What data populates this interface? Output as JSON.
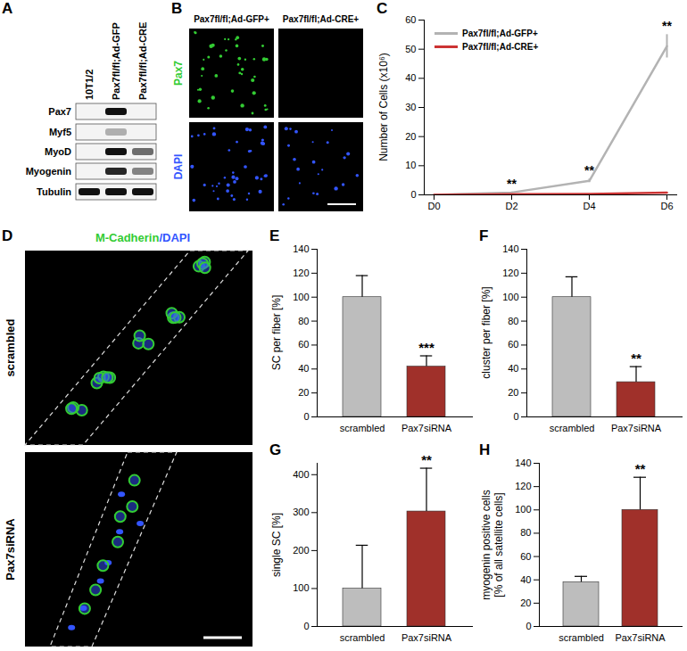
{
  "panels": {
    "A": {
      "panel": "A",
      "columns": [
        "10T1/2",
        "Pax7fl/fl;Ad-GFP",
        "Pax7fl/fl;Ad-CRE"
      ],
      "rows": [
        {
          "label": "Pax7",
          "bands": [
            0,
            1,
            0
          ]
        },
        {
          "label": "Myf5",
          "bands": [
            0,
            0.3,
            0
          ]
        },
        {
          "label": "MyoD",
          "bands": [
            0,
            1,
            0.6
          ]
        },
        {
          "label": "Myogenin",
          "bands": [
            0,
            0.9,
            0.5
          ]
        },
        {
          "label": "Tubulin",
          "bands": [
            1,
            1,
            1
          ]
        }
      ]
    },
    "B": {
      "panel": "B",
      "columns": [
        "Pax7fl/fl;Ad-GFP+",
        "Pax7fl/fl;Ad-CRE+"
      ],
      "rows": [
        {
          "label": "Pax7",
          "color": "#33cc33",
          "signal": [
            true,
            false
          ]
        },
        {
          "label": "DAPI",
          "color": "#3355ff",
          "signal": [
            true,
            true
          ]
        }
      ]
    },
    "D": {
      "panel": "D",
      "stains": [
        {
          "text": "M-Cadherin",
          "color": "#33cc33"
        },
        {
          "text": "/DAPI",
          "color": "#3355ff"
        }
      ],
      "rows": [
        "scrambled",
        "Pax7siRNA"
      ]
    }
  },
  "chart_data": [
    {
      "panel": "C",
      "type": "line",
      "categories": [
        "D0",
        "D2",
        "D4",
        "D6"
      ],
      "y_label": "Number of Cells (x10⁶)",
      "ylim": [
        0,
        60
      ],
      "yticks": [
        0,
        10,
        20,
        30,
        40,
        50,
        60
      ],
      "legend": "top-left",
      "series": [
        {
          "name": "Pax7fl/fl;Ad-GFP+",
          "color": "#b3b3b3",
          "values": [
            0,
            0.8,
            4.8,
            51
          ],
          "errors": [
            0,
            0.2,
            0.6,
            4
          ]
        },
        {
          "name": "Pax7fl/fl;Ad-CRE+",
          "color": "#cc3333",
          "values": [
            0,
            0.2,
            0.3,
            0.8
          ],
          "errors": [
            0,
            0,
            0,
            0
          ]
        }
      ],
      "annotations": [
        {
          "x": "D2",
          "text": "**"
        },
        {
          "x": "D4",
          "text": "**"
        },
        {
          "x": "D6",
          "text": "**"
        }
      ]
    },
    {
      "panel": "E",
      "type": "bar",
      "categories": [
        "scrambled",
        "Pax7siRNA"
      ],
      "values": [
        100,
        42
      ],
      "errors": [
        18,
        9
      ],
      "colors": [
        "#bdbdbd",
        "#a0302a"
      ],
      "y_label": "SC per fiber [%]",
      "ylim": [
        0,
        140
      ],
      "yticks": [
        0,
        20,
        40,
        60,
        80,
        100,
        120,
        140
      ],
      "annotations": [
        {
          "x": "Pax7siRNA",
          "text": "***"
        }
      ]
    },
    {
      "panel": "F",
      "type": "bar",
      "categories": [
        "scrambled",
        "Pax7siRNA"
      ],
      "values": [
        100,
        29
      ],
      "errors": [
        17,
        13
      ],
      "colors": [
        "#bdbdbd",
        "#a0302a"
      ],
      "y_label": "cluster per fiber [%]",
      "ylim": [
        0,
        140
      ],
      "yticks": [
        0,
        20,
        40,
        60,
        80,
        100,
        120,
        140
      ],
      "annotations": [
        {
          "x": "Pax7siRNA",
          "text": "**"
        }
      ]
    },
    {
      "panel": "G",
      "type": "bar",
      "categories": [
        "scrambled",
        "Pax7siRNA"
      ],
      "values": [
        100,
        303
      ],
      "errors": [
        114,
        114
      ],
      "colors": [
        "#bdbdbd",
        "#a0302a"
      ],
      "y_label": "single SC [%]",
      "ylim": [
        0,
        430
      ],
      "yticks": [
        0,
        100,
        200,
        300,
        400
      ],
      "annotations": [
        {
          "x": "Pax7siRNA",
          "text": "**"
        }
      ]
    },
    {
      "panel": "H",
      "type": "bar",
      "categories": [
        "scrambled",
        "Pax7siRNA"
      ],
      "values": [
        38,
        100
      ],
      "errors": [
        5,
        28
      ],
      "colors": [
        "#bdbdbd",
        "#a0302a"
      ],
      "y_label": [
        "myogenin positive cells",
        "[% of all satellite cells]"
      ],
      "ylim": [
        0,
        140
      ],
      "yticks": [
        0,
        20,
        40,
        60,
        80,
        100,
        120,
        140
      ],
      "annotations": [
        {
          "x": "Pax7siRNA",
          "text": "**"
        }
      ]
    }
  ]
}
